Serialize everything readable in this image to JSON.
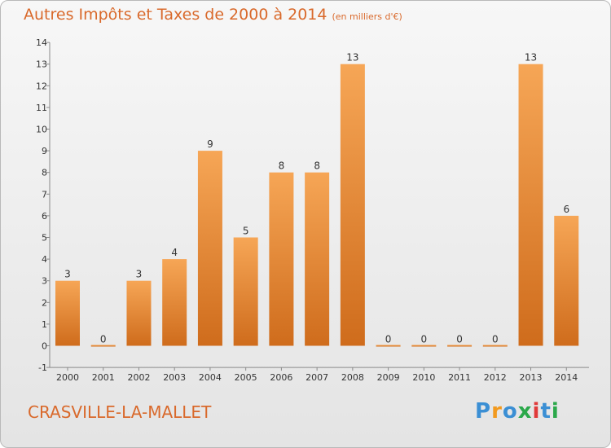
{
  "title": "Autres Impôts et Taxes de 2000 à 2014",
  "title_unit": "(en milliers d'€)",
  "commune": "CRASVILLE-LA-MALLET",
  "logo": {
    "letters": [
      "P",
      "r",
      "o",
      "x",
      "i",
      "t",
      "i"
    ],
    "colors": [
      "#3b8fd4",
      "#f29a1f",
      "#3b8fd4",
      "#2ba84a",
      "#e03a3a",
      "#3b8fd4",
      "#2ba84a"
    ]
  },
  "colors": {
    "bar_top": "#f6a656",
    "bar_bottom": "#cf6c1c",
    "accent": "#d9692b"
  },
  "chart_data": {
    "type": "bar",
    "categories": [
      "2000",
      "2001",
      "2002",
      "2003",
      "2004",
      "2005",
      "2006",
      "2007",
      "2008",
      "2009",
      "2010",
      "2011",
      "2012",
      "2013",
      "2014"
    ],
    "values": [
      3,
      0,
      3,
      4,
      9,
      5,
      8,
      8,
      13,
      0,
      0,
      0,
      0,
      13,
      6
    ],
    "data_labels": [
      "3",
      "0",
      "3",
      "4",
      "9",
      "5",
      "8",
      "8",
      "13",
      "0",
      "0",
      "0",
      "0",
      "13",
      "6"
    ],
    "yticks": [
      "-1",
      "0",
      "1",
      "2",
      "3",
      "4",
      "5",
      "6",
      "7",
      "8",
      "9",
      "10",
      "11",
      "12",
      "13",
      "14"
    ],
    "ylim": [
      -1,
      14
    ],
    "grid": false,
    "xlabel": "",
    "ylabel": ""
  }
}
